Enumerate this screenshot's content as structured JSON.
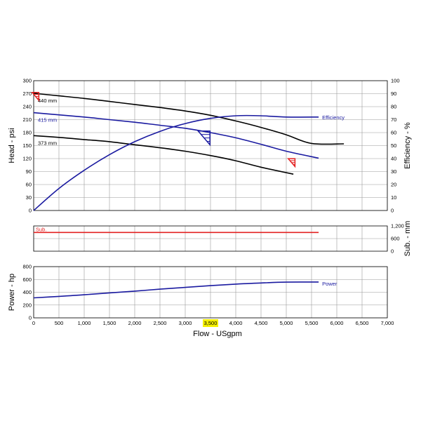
{
  "chart_data": [
    {
      "type": "line",
      "panel": "head",
      "ylabel": "Head - psi",
      "y2label": "Efficiency - %",
      "xlim": [
        0,
        7000
      ],
      "ylim": [
        0,
        300
      ],
      "y2lim": [
        0,
        100
      ],
      "yticks": [
        0,
        30,
        60,
        90,
        120,
        150,
        180,
        210,
        240,
        270,
        300
      ],
      "y2ticks": [
        0,
        10,
        20,
        30,
        40,
        50,
        60,
        70,
        80,
        90,
        100
      ],
      "grid": true,
      "series": [
        {
          "name": "440 mm",
          "color": "#000000",
          "axis": "left",
          "x": [
            0,
            500,
            1000,
            1500,
            2000,
            2500,
            3000,
            3500,
            4000,
            4500,
            5000,
            5500,
            6140
          ],
          "y": [
            271,
            265,
            259,
            252,
            245,
            238,
            230,
            220,
            207,
            192,
            175,
            155,
            154
          ]
        },
        {
          "name": "415 mm",
          "color": "#1a1aa0",
          "axis": "left",
          "x": [
            0,
            500,
            1000,
            1500,
            2000,
            2500,
            3000,
            3500,
            4000,
            4500,
            5000,
            5640
          ],
          "y": [
            226,
            221,
            216,
            210,
            204,
            197,
            190,
            180,
            168,
            153,
            137,
            121
          ]
        },
        {
          "name": "373 mm",
          "color": "#000000",
          "axis": "left",
          "x": [
            0,
            500,
            1000,
            1500,
            2000,
            2500,
            3000,
            3500,
            4000,
            4500,
            5140
          ],
          "y": [
            173,
            169,
            164,
            159,
            152,
            145,
            137,
            127,
            115,
            100,
            84
          ]
        },
        {
          "name": "Efficiency",
          "color": "#1a1aa0",
          "axis": "right",
          "x": [
            0,
            500,
            1000,
            1500,
            2000,
            2500,
            3000,
            3500,
            4000,
            4500,
            5000,
            5640
          ],
          "y": [
            0,
            17,
            31,
            43,
            53,
            61,
            67,
            71,
            73,
            73,
            72,
            72
          ]
        }
      ],
      "markers": [
        {
          "kind": "red-triangle",
          "x": 80,
          "y": 265
        },
        {
          "kind": "blue-triangle",
          "x": 3450,
          "y": 170
        },
        {
          "kind": "red-triangle",
          "x": 5150,
          "y": 112
        }
      ]
    },
    {
      "type": "line",
      "panel": "sub",
      "y2label": "Sub. - mm",
      "xlim": [
        0,
        7000
      ],
      "y2lim": [
        0,
        1200
      ],
      "y2ticks": [
        0,
        600,
        "1,200"
      ],
      "grid": true,
      "series": [
        {
          "name": "Sub.",
          "color": "#e32222",
          "x": [
            0,
            5640
          ],
          "y": [
            890,
            890
          ]
        }
      ]
    },
    {
      "type": "line",
      "panel": "power",
      "ylabel": "Power - hp",
      "xlabel": "Flow - USgpm",
      "xlim": [
        0,
        7000
      ],
      "ylim": [
        0,
        800
      ],
      "yticks": [
        0,
        200,
        400,
        600,
        800
      ],
      "xticks": [
        "0",
        "500",
        "1,000",
        "1,500",
        "2,000",
        "2,500",
        "3,000",
        "3,500",
        "4,000",
        "4,500",
        "5,000",
        "5,500",
        "6,000",
        "6,500",
        "7,000"
      ],
      "highlighted_xtick": "3,500",
      "grid": true,
      "series": [
        {
          "name": "Power",
          "color": "#1a1aa0",
          "x": [
            0,
            500,
            1000,
            1500,
            2000,
            2500,
            3000,
            3500,
            4000,
            4500,
            5000,
            5640
          ],
          "y": [
            312,
            335,
            360,
            390,
            418,
            448,
            476,
            503,
            527,
            545,
            558,
            560
          ]
        }
      ]
    }
  ]
}
